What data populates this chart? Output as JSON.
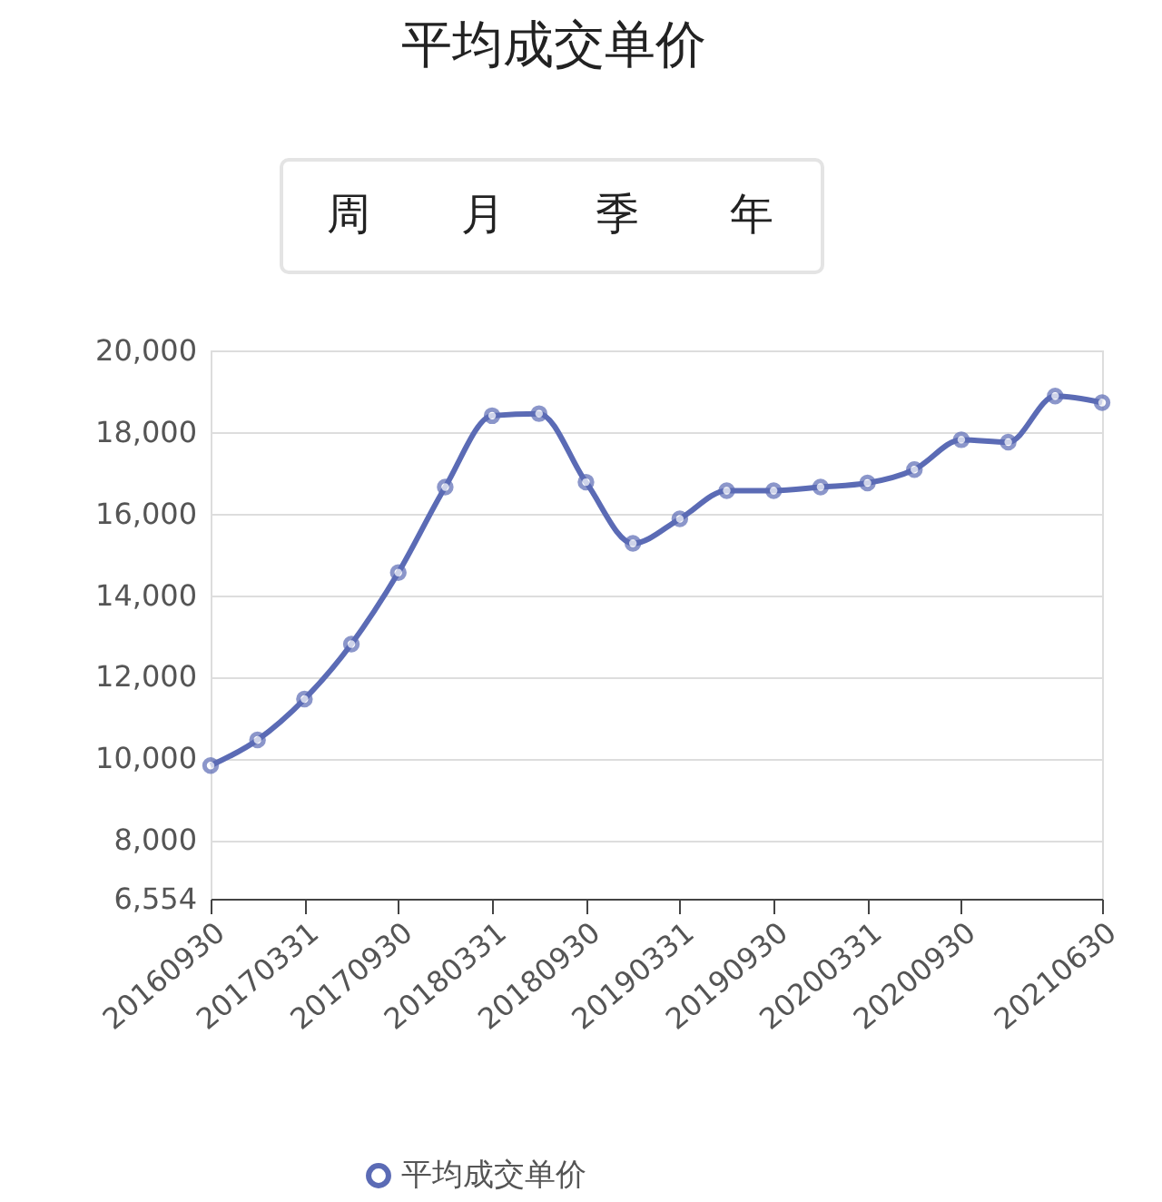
{
  "chart_data": {
    "type": "line",
    "title": "平均成交单价",
    "annotations": [
      "周",
      "月",
      "季",
      "年"
    ],
    "categories": [
      "20160930",
      null,
      "20170331",
      null,
      "20170930",
      null,
      "20180331",
      null,
      "20180930",
      null,
      "20190331",
      null,
      "20190930",
      null,
      "20200331",
      null,
      "20200930",
      null,
      null,
      "20210630"
    ],
    "series": [
      {
        "name": "平均成交单价",
        "color": "#5b6bb5",
        "values": [
          9820,
          10450,
          11450,
          12800,
          14550,
          16650,
          18400,
          18450,
          16770,
          15270,
          15870,
          16560,
          16560,
          16650,
          16750,
          17080,
          17810,
          17750,
          18880,
          18720
        ]
      }
    ],
    "ylim": [
      6554,
      20000
    ],
    "yticks": [
      {
        "value": 6554,
        "label": "6,554"
      },
      {
        "value": 8000,
        "label": "8,000"
      },
      {
        "value": 10000,
        "label": "10,000"
      },
      {
        "value": 12000,
        "label": "12,000"
      },
      {
        "value": 14000,
        "label": "14,000"
      },
      {
        "value": 16000,
        "label": "16,000"
      },
      {
        "value": 18000,
        "label": "18,000"
      },
      {
        "value": 20000,
        "label": "20,000"
      }
    ],
    "grid": "y",
    "legend": "bottom",
    "marker": "circle",
    "line_style": "solid"
  }
}
